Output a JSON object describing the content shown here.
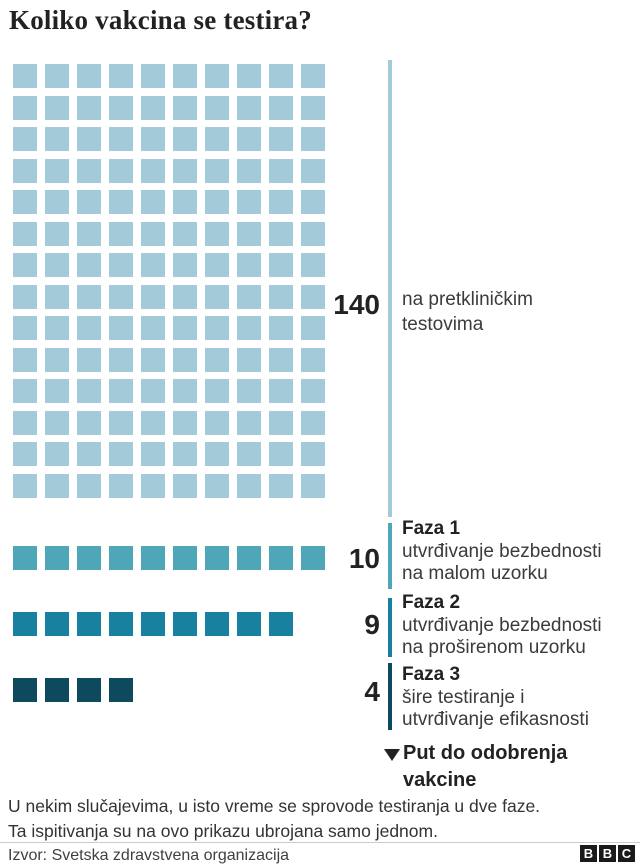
{
  "title": "Koliko vakcina se testira?",
  "colors": {
    "preclinical": "#A3CAD9",
    "phase1": "#4FA6B8",
    "phase2": "#17819F",
    "phase3": "#0E4A5E",
    "text_dark": "#222222",
    "text_body": "#3B3B3B"
  },
  "chart_data": {
    "type": "pictogram",
    "title": "Koliko vakcina se testira?",
    "categories": [
      "na pretkliničkim testovima",
      "Faza 1: utvrđivanje bezbednosti na malom uzorku",
      "Faza 2: utvrđivanje bezbednosti na proširenom uzorku",
      "Faza 3: šire testiranje i utvrđivanje efikasnosti"
    ],
    "values": [
      140,
      10,
      9,
      4
    ],
    "legend_position": "right",
    "annotation": "Put do odobrenja vakcine",
    "layout": "waffle grid, 10 squares per row, 1 square = 1 vaccine"
  },
  "stages": [
    {
      "id": "preclinical",
      "count": "140",
      "name": "",
      "desc_lines": [
        "na pretkliničkim",
        "testovima"
      ],
      "squares": 140,
      "color": "#A3CAD9"
    },
    {
      "id": "faza1",
      "count": "10",
      "name": "Faza 1",
      "desc_lines": [
        "utvrđivanje bezbednosti",
        "na malom uzorku"
      ],
      "squares": 10,
      "color": "#4FA6B8"
    },
    {
      "id": "faza2",
      "count": "9",
      "name": "Faza 2",
      "desc_lines": [
        "utvrđivanje bezbednosti",
        "na proširenom uzorku"
      ],
      "squares": 9,
      "color": "#17819F"
    },
    {
      "id": "faza3",
      "count": "4",
      "name": "Faza 3",
      "desc_lines": [
        "šire testiranje i",
        "utvrđivanje efikasnosti"
      ],
      "squares": 4,
      "color": "#0E4A5E"
    }
  ],
  "approval": {
    "icon": "down-triangle",
    "line1": "Put do odobrenja",
    "line2": "vakcine"
  },
  "footnote_lines": [
    "U nekim slučajevima, u isto vreme se sprovode testiranja u dve faze.",
    "Ta ispitivanja su na ovo prikazu ubrojana samo jednom."
  ],
  "source": "Izvor: Svetska zdravstvena organizacija",
  "logo": [
    "B",
    "B",
    "C"
  ]
}
